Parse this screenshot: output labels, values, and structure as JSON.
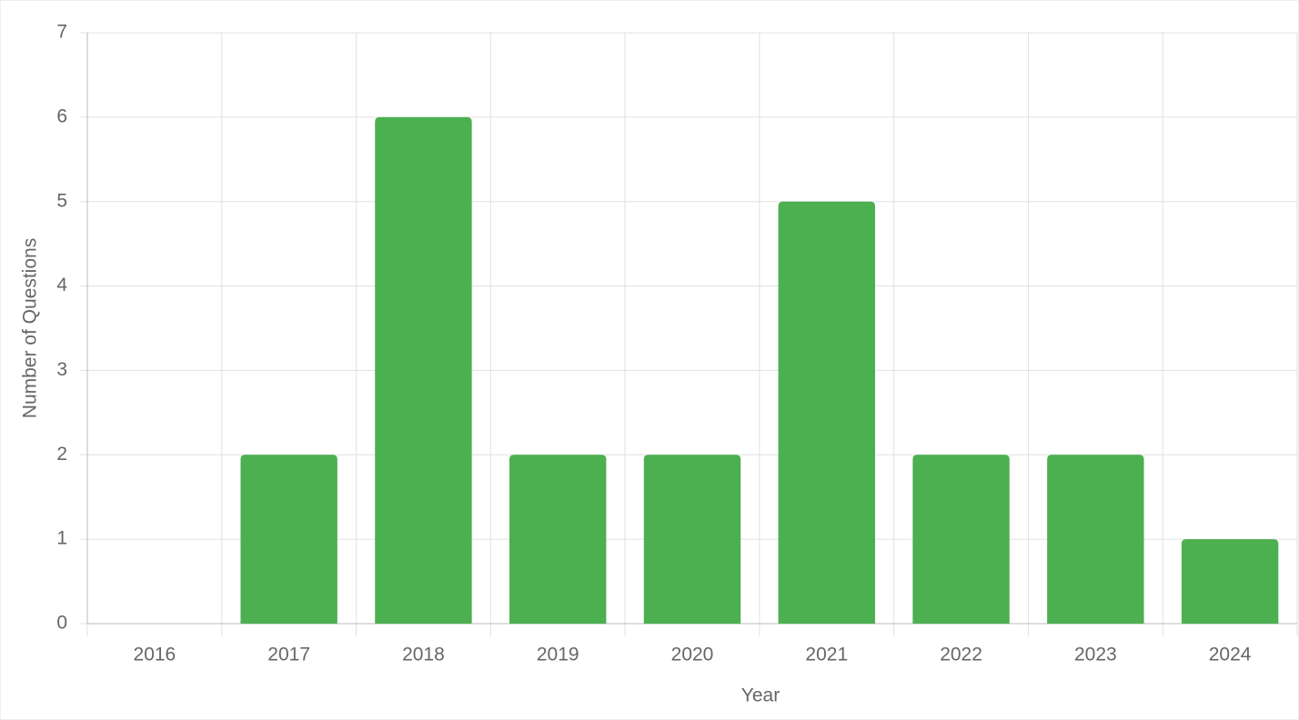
{
  "chart_data": {
    "type": "bar",
    "x_label": "Year",
    "y_label": "Number of Questions",
    "categories": [
      "2016",
      "2017",
      "2018",
      "2019",
      "2020",
      "2021",
      "2022",
      "2023",
      "2024"
    ],
    "values": [
      0,
      2,
      6,
      2,
      2,
      5,
      2,
      2,
      1
    ],
    "color": "#4caf50",
    "ylim": [
      0,
      7
    ],
    "yticks": [
      0,
      1,
      2,
      3,
      4,
      5,
      6,
      7
    ],
    "grid": true
  }
}
